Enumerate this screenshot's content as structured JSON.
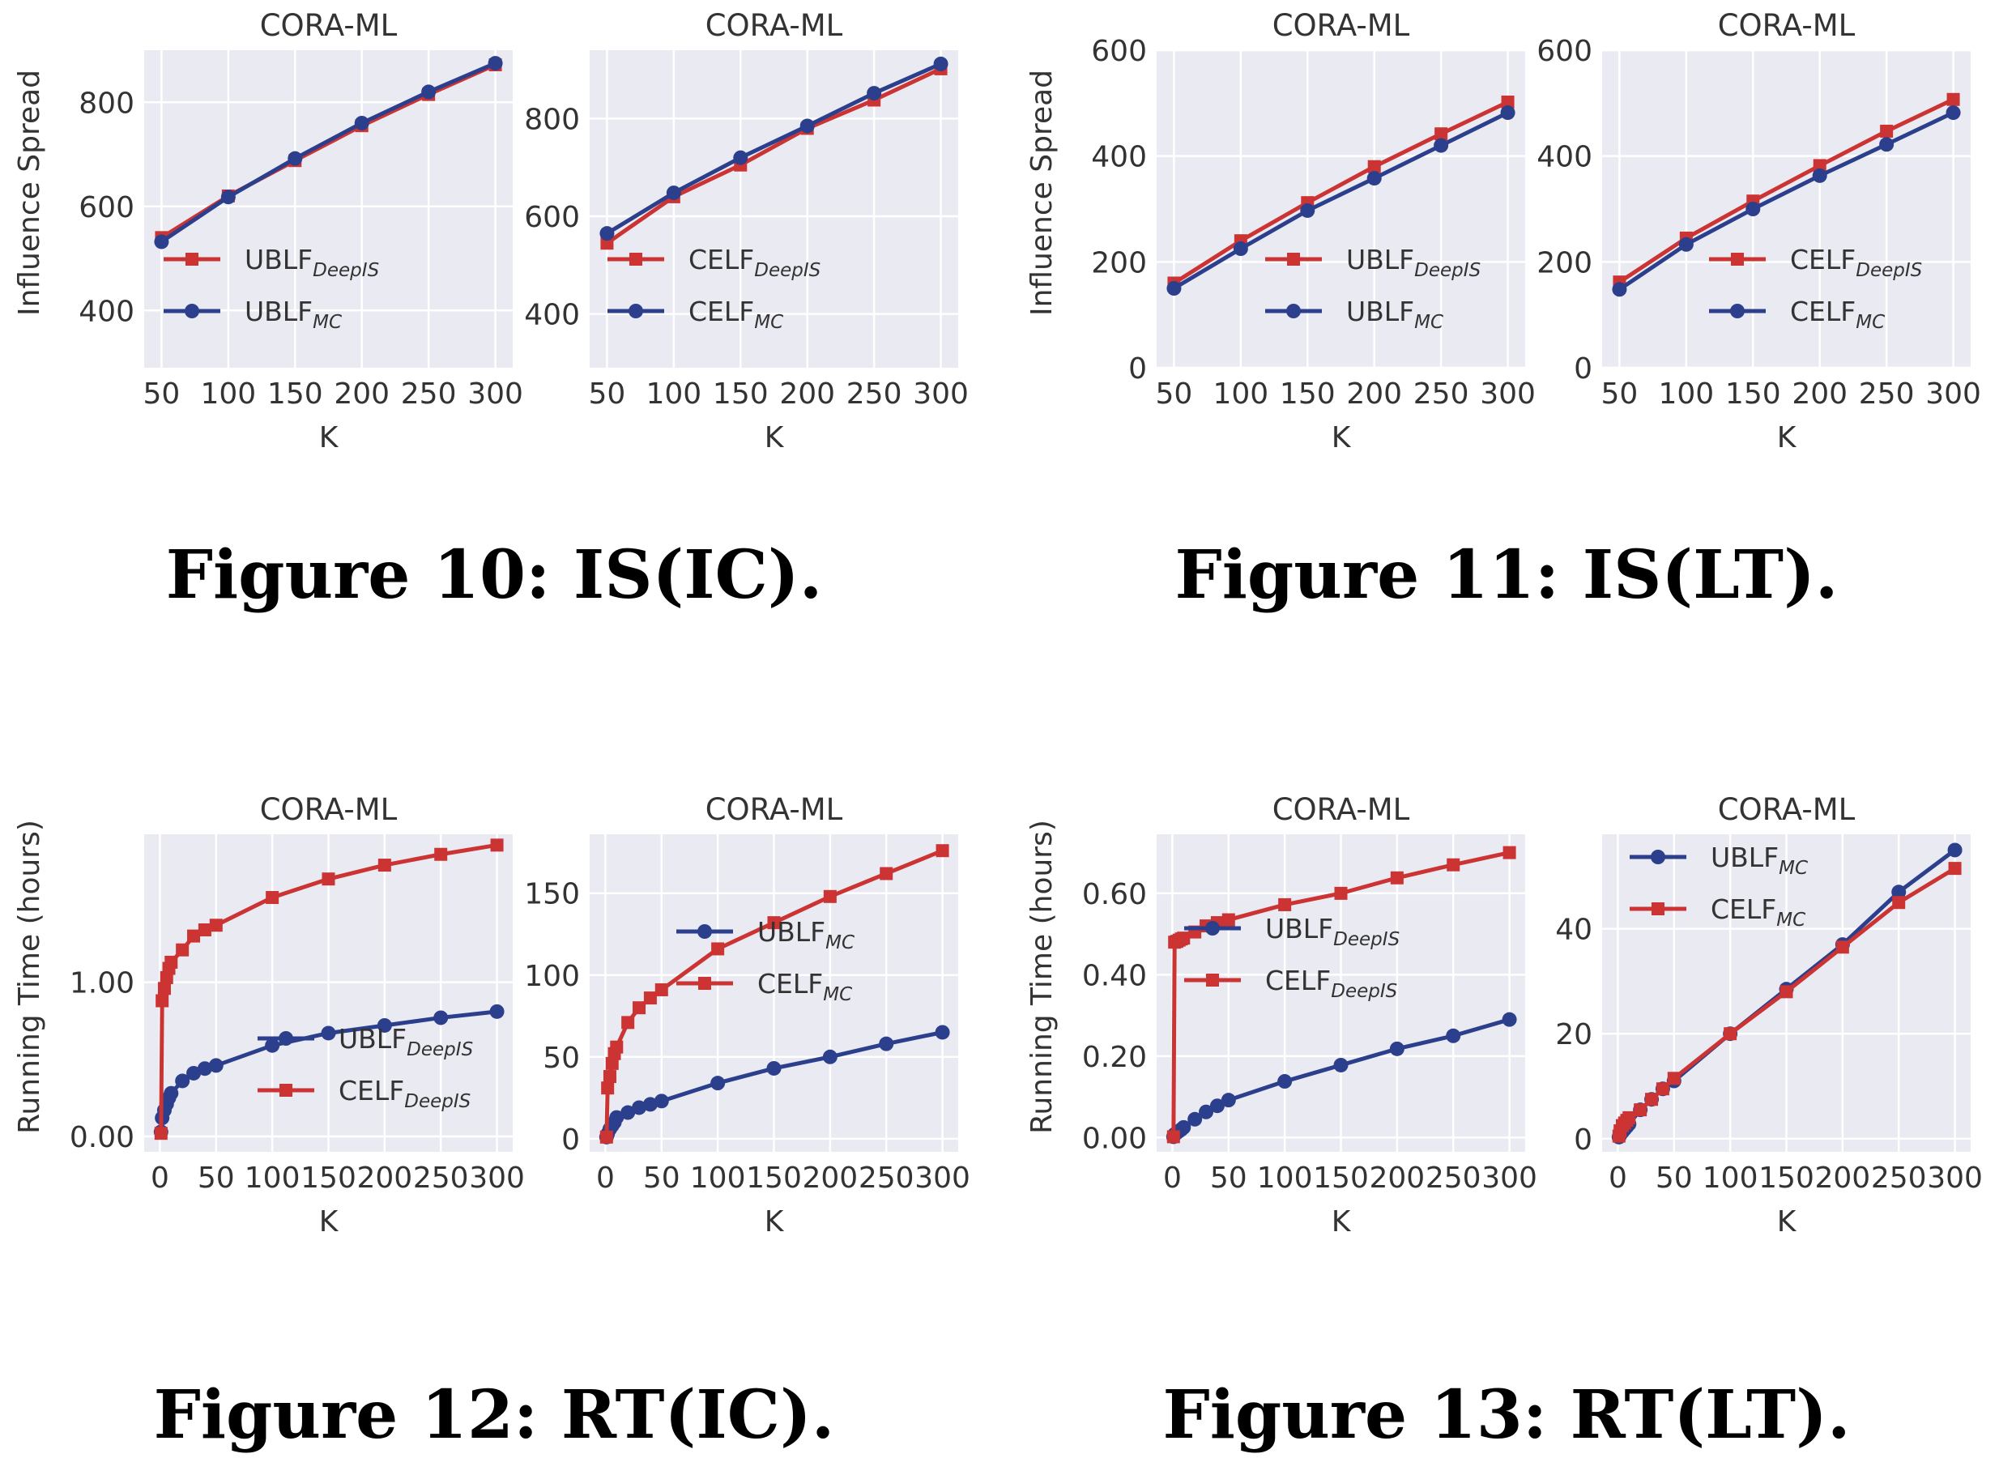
{
  "captions": [
    {
      "text": "Figure 10: IS(IC)."
    },
    {
      "text": "Figure 11: IS(LT)."
    },
    {
      "text": "Figure 12: RT(IC)."
    },
    {
      "text": "Figure 13: RT(LT)."
    }
  ],
  "colors": {
    "red": "#cc3333",
    "blue": "#2b3f8c",
    "plot_bg": "#eaeaf2",
    "grid": "#ffffff"
  },
  "chart_data": [
    {
      "type": "line",
      "title": "CORA-ML",
      "xlabel": "K",
      "ylabel": "Influence Spread",
      "xlim": [
        37,
        313
      ],
      "ylim": [
        290,
        900
      ],
      "xticks": [
        50,
        100,
        150,
        200,
        250,
        300
      ],
      "xtick_labels": [
        "50",
        "100",
        "150",
        "200",
        "250",
        "300"
      ],
      "yticks": [
        400,
        600,
        800
      ],
      "ytick_labels": [
        "400",
        "600",
        "800"
      ],
      "legend_position": "lower-left",
      "grid": true,
      "series": [
        {
          "name": "UBLF",
          "sub": "DeepIS",
          "color": "red",
          "marker": "square",
          "x": [
            50,
            100,
            150,
            200,
            250,
            300
          ],
          "y": [
            540,
            620,
            688,
            755,
            815,
            872
          ]
        },
        {
          "name": "UBLF",
          "sub": "MC",
          "color": "blue",
          "marker": "circle",
          "x": [
            50,
            100,
            150,
            200,
            250,
            300
          ],
          "y": [
            532,
            618,
            692,
            760,
            820,
            875
          ]
        }
      ]
    },
    {
      "type": "line",
      "title": "CORA-ML",
      "xlabel": "K",
      "ylabel": "",
      "xlim": [
        37,
        313
      ],
      "ylim": [
        290,
        940
      ],
      "xticks": [
        50,
        100,
        150,
        200,
        250,
        300
      ],
      "xtick_labels": [
        "50",
        "100",
        "150",
        "200",
        "250",
        "300"
      ],
      "yticks": [
        400,
        600,
        800
      ],
      "ytick_labels": [
        "400",
        "600",
        "800"
      ],
      "legend_position": "lower-left",
      "grid": true,
      "series": [
        {
          "name": "CELF",
          "sub": "DeepIS",
          "color": "red",
          "marker": "square",
          "x": [
            50,
            100,
            150,
            200,
            250,
            300
          ],
          "y": [
            545,
            640,
            705,
            780,
            838,
            902
          ]
        },
        {
          "name": "CELF",
          "sub": "MC",
          "color": "blue",
          "marker": "circle",
          "x": [
            50,
            100,
            150,
            200,
            250,
            300
          ],
          "y": [
            565,
            648,
            720,
            785,
            852,
            912
          ]
        }
      ]
    },
    {
      "type": "line",
      "title": "CORA-ML",
      "xlabel": "K",
      "ylabel": "Influence Spread",
      "xlim": [
        37,
        313
      ],
      "ylim": [
        0,
        600
      ],
      "xticks": [
        50,
        100,
        150,
        200,
        250,
        300
      ],
      "xtick_labels": [
        "50",
        "100",
        "150",
        "200",
        "250",
        "300"
      ],
      "yticks": [
        0,
        200,
        400,
        600
      ],
      "ytick_labels": [
        "0",
        "200",
        "400",
        "600"
      ],
      "legend_position": "lower-right",
      "grid": true,
      "series": [
        {
          "name": "UBLF",
          "sub": "DeepIS",
          "color": "red",
          "marker": "square",
          "x": [
            50,
            100,
            150,
            200,
            250,
            300
          ],
          "y": [
            160,
            240,
            312,
            380,
            442,
            502
          ]
        },
        {
          "name": "UBLF",
          "sub": "MC",
          "color": "blue",
          "marker": "circle",
          "x": [
            50,
            100,
            150,
            200,
            250,
            300
          ],
          "y": [
            150,
            225,
            297,
            358,
            420,
            482
          ]
        }
      ]
    },
    {
      "type": "line",
      "title": "CORA-ML",
      "xlabel": "K",
      "ylabel": "",
      "xlim": [
        37,
        313
      ],
      "ylim": [
        0,
        600
      ],
      "xticks": [
        50,
        100,
        150,
        200,
        250,
        300
      ],
      "xtick_labels": [
        "50",
        "100",
        "150",
        "200",
        "250",
        "300"
      ],
      "yticks": [
        0,
        200,
        400,
        600
      ],
      "ytick_labels": [
        "0",
        "200",
        "400",
        "600"
      ],
      "legend_position": "lower-right",
      "grid": true,
      "series": [
        {
          "name": "CELF",
          "sub": "DeepIS",
          "color": "red",
          "marker": "square",
          "x": [
            50,
            100,
            150,
            200,
            250,
            300
          ],
          "y": [
            162,
            245,
            315,
            382,
            447,
            507
          ]
        },
        {
          "name": "CELF",
          "sub": "MC",
          "color": "blue",
          "marker": "circle",
          "x": [
            50,
            100,
            150,
            200,
            250,
            300
          ],
          "y": [
            148,
            233,
            300,
            363,
            422,
            482
          ]
        }
      ]
    },
    {
      "type": "line",
      "title": "CORA-ML",
      "xlabel": "K",
      "ylabel": "Running Time (hours)",
      "xlim": [
        -14,
        314
      ],
      "ylim": [
        -0.1,
        1.96
      ],
      "xticks": [
        0,
        50,
        100,
        150,
        200,
        250,
        300
      ],
      "xtick_labels": [
        "0",
        "50",
        "100",
        "150",
        "200",
        "250",
        "300"
      ],
      "yticks": [
        0,
        1
      ],
      "ytick_labels": [
        "0.00",
        "1.00"
      ],
      "legend_position": "lower-right",
      "grid": true,
      "series": [
        {
          "name": "UBLF",
          "sub": "DeepIS",
          "color": "blue",
          "marker": "circle",
          "x": [
            1,
            2,
            4,
            6,
            8,
            10,
            20,
            30,
            40,
            50,
            100,
            150,
            200,
            250,
            300
          ],
          "y": [
            0.03,
            0.12,
            0.17,
            0.21,
            0.25,
            0.28,
            0.36,
            0.41,
            0.44,
            0.46,
            0.59,
            0.67,
            0.72,
            0.77,
            0.81
          ]
        },
        {
          "name": "CELF",
          "sub": "DeepIS",
          "color": "red",
          "marker": "square",
          "x": [
            1,
            2,
            4,
            6,
            8,
            10,
            20,
            30,
            40,
            50,
            100,
            150,
            200,
            250,
            300
          ],
          "y": [
            0.02,
            0.88,
            0.96,
            1.03,
            1.09,
            1.13,
            1.21,
            1.3,
            1.34,
            1.37,
            1.55,
            1.67,
            1.76,
            1.83,
            1.89
          ]
        }
      ]
    },
    {
      "type": "line",
      "title": "CORA-ML",
      "xlabel": "K",
      "ylabel": "",
      "xlim": [
        -14,
        314
      ],
      "ylim": [
        -8,
        186
      ],
      "xticks": [
        0,
        50,
        100,
        150,
        200,
        250,
        300
      ],
      "xtick_labels": [
        "0",
        "50",
        "100",
        "150",
        "200",
        "250",
        "300"
      ],
      "yticks": [
        0,
        50,
        100,
        150
      ],
      "ytick_labels": [
        "0",
        "50",
        "100",
        "150"
      ],
      "legend_position": "center-right",
      "grid": true,
      "series": [
        {
          "name": "UBLF",
          "sub": "MC",
          "color": "blue",
          "marker": "circle",
          "x": [
            1,
            2,
            4,
            6,
            8,
            10,
            20,
            30,
            40,
            50,
            100,
            150,
            200,
            250,
            300
          ],
          "y": [
            1,
            3,
            6,
            8,
            10,
            13,
            16,
            19,
            21,
            23,
            34,
            43,
            50,
            58,
            65
          ]
        },
        {
          "name": "CELF",
          "sub": "MC",
          "color": "red",
          "marker": "square",
          "x": [
            1,
            2,
            4,
            6,
            8,
            10,
            20,
            30,
            40,
            50,
            100,
            150,
            200,
            250,
            300
          ],
          "y": [
            1,
            31,
            38,
            46,
            52,
            56,
            71,
            80,
            86,
            91,
            116,
            132,
            148,
            162,
            176
          ]
        }
      ]
    },
    {
      "type": "line",
      "title": "CORA-ML",
      "xlabel": "K",
      "ylabel": "Running Time (hours)",
      "xlim": [
        -14,
        314
      ],
      "ylim": [
        -0.035,
        0.745
      ],
      "xticks": [
        0,
        50,
        100,
        150,
        200,
        250,
        300
      ],
      "xtick_labels": [
        "0",
        "50",
        "100",
        "150",
        "200",
        "250",
        "300"
      ],
      "yticks": [
        0,
        0.2,
        0.4,
        0.6
      ],
      "ytick_labels": [
        "0.00",
        "0.20",
        "0.40",
        "0.60"
      ],
      "legend_position": "center-left",
      "grid": true,
      "series": [
        {
          "name": "UBLF",
          "sub": "DeepIS",
          "color": "blue",
          "marker": "circle",
          "x": [
            1,
            2,
            4,
            6,
            8,
            10,
            20,
            30,
            40,
            50,
            100,
            150,
            200,
            250,
            300
          ],
          "y": [
            0.002,
            0.008,
            0.012,
            0.016,
            0.02,
            0.025,
            0.045,
            0.063,
            0.078,
            0.092,
            0.138,
            0.178,
            0.218,
            0.25,
            0.29
          ]
        },
        {
          "name": "CELF",
          "sub": "DeepIS",
          "color": "red",
          "marker": "square",
          "x": [
            1,
            2,
            4,
            6,
            8,
            10,
            20,
            30,
            40,
            50,
            100,
            150,
            200,
            250,
            300
          ],
          "y": [
            0.002,
            0.48,
            0.482,
            0.485,
            0.488,
            0.49,
            0.505,
            0.52,
            0.528,
            0.535,
            0.572,
            0.6,
            0.638,
            0.67,
            0.7
          ]
        }
      ]
    },
    {
      "type": "line",
      "title": "CORA-ML",
      "xlabel": "K",
      "ylabel": "",
      "xlim": [
        -14,
        314
      ],
      "ylim": [
        -2.5,
        58
      ],
      "xticks": [
        0,
        50,
        100,
        150,
        200,
        250,
        300
      ],
      "xtick_labels": [
        "0",
        "50",
        "100",
        "150",
        "200",
        "250",
        "300"
      ],
      "yticks": [
        0,
        20,
        40
      ],
      "ytick_labels": [
        "0",
        "20",
        "40"
      ],
      "legend_position": "top-left",
      "grid": true,
      "series": [
        {
          "name": "UBLF",
          "sub": "MC",
          "color": "blue",
          "marker": "circle",
          "x": [
            1,
            2,
            4,
            6,
            8,
            10,
            20,
            30,
            40,
            50,
            100,
            150,
            200,
            250,
            300
          ],
          "y": [
            0.3,
            0.7,
            1.3,
            1.8,
            2.3,
            2.8,
            5.5,
            7.5,
            9.5,
            11,
            20,
            28.5,
            37,
            47,
            55
          ]
        },
        {
          "name": "CELF",
          "sub": "MC",
          "color": "red",
          "marker": "square",
          "x": [
            1,
            2,
            4,
            6,
            8,
            10,
            20,
            30,
            40,
            50,
            100,
            150,
            200,
            250,
            300
          ],
          "y": [
            0.5,
            1.5,
            2.5,
            3,
            3.5,
            4,
            5.5,
            7.5,
            9.5,
            11.5,
            20,
            28,
            36.5,
            45,
            51.5
          ]
        }
      ]
    }
  ]
}
